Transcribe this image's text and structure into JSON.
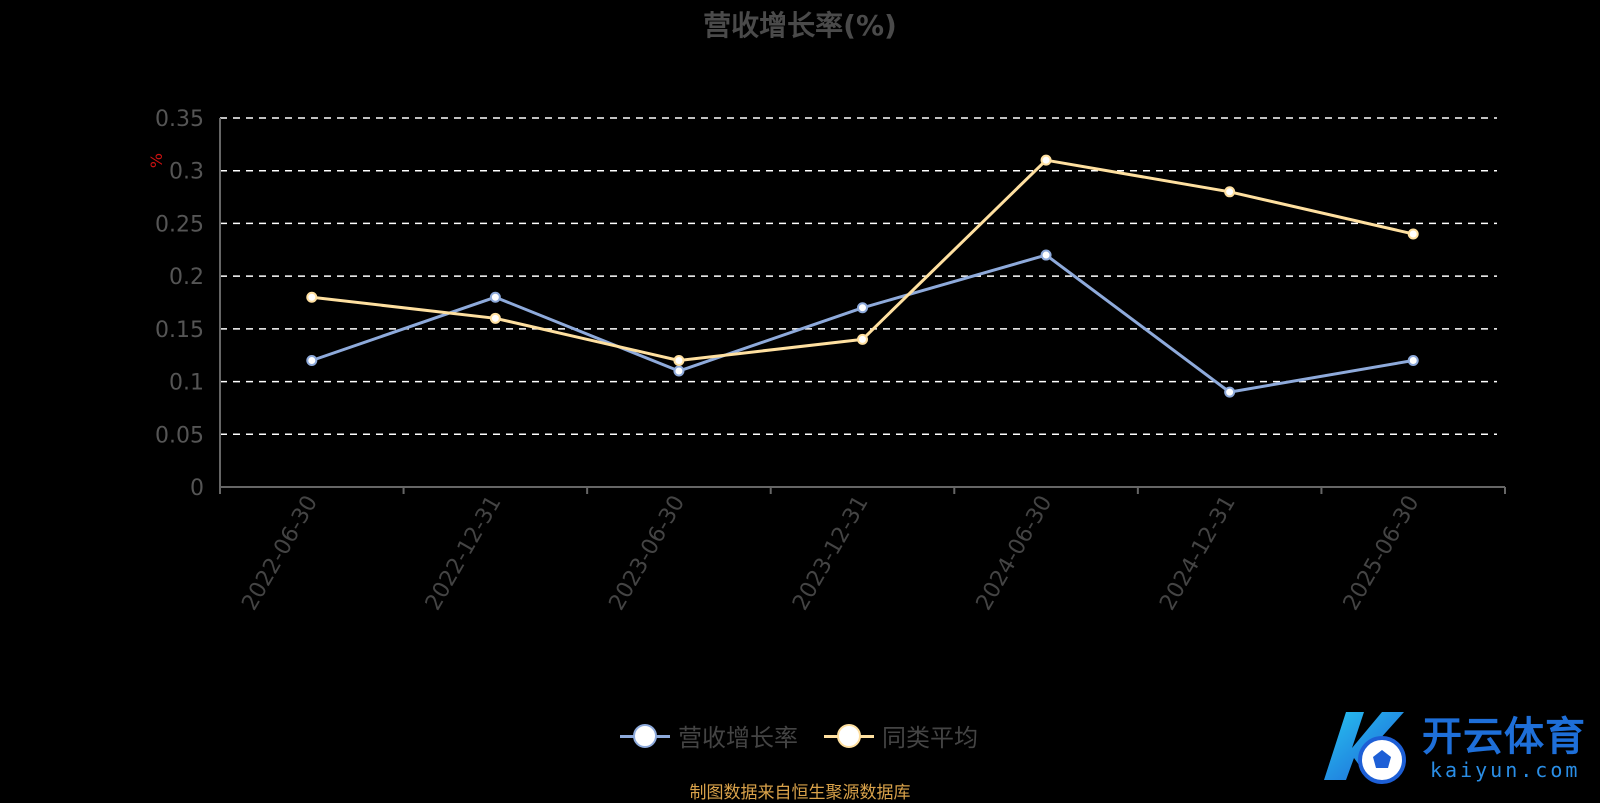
{
  "chart_data": {
    "type": "line",
    "title": "营收增长率(%)",
    "ylabel": "%",
    "xlabel": "",
    "categories": [
      "2022-06-30",
      "2022-12-31",
      "2023-06-30",
      "2023-12-31",
      "2024-06-30",
      "2024-12-31",
      "2025-06-30"
    ],
    "ylim": [
      0,
      0.35
    ],
    "yticks": [
      "0",
      "0.05",
      "0.1",
      "0.15",
      "0.2",
      "0.25",
      "0.3",
      "0.35"
    ],
    "grid": true,
    "legend_position": "bottom-center",
    "series": [
      {
        "name": "营收增长率",
        "color": "#8eaadb",
        "values": [
          0.12,
          0.18,
          0.11,
          0.17,
          0.22,
          0.09,
          0.12
        ]
      },
      {
        "name": "同类平均",
        "color": "#ffe0a0",
        "values": [
          0.18,
          0.16,
          0.12,
          0.14,
          0.31,
          0.28,
          0.24
        ]
      }
    ]
  },
  "source_note": "制图数据来自恒生聚源数据库",
  "watermark": {
    "title": "开云体育",
    "subtitle": "kaiyun.com"
  }
}
